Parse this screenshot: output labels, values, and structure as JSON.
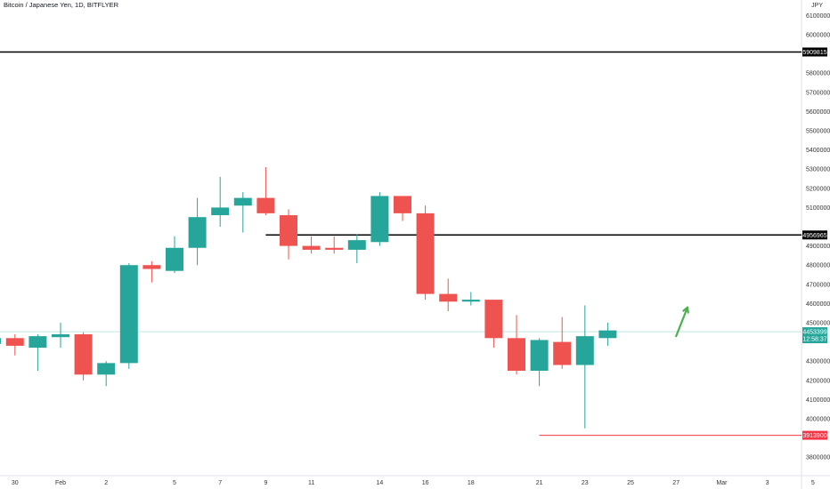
{
  "header": {
    "title": "Bitcoin / Japanese Yen, 1D, BITFLYER",
    "currency": "JPY"
  },
  "colors": {
    "up": "#26a69a",
    "down": "#ef5350",
    "level": "#000000",
    "support": "#f23645",
    "arrow": "#4caf50",
    "current": "#26a69a"
  },
  "chart_data": {
    "type": "candlestick",
    "title": "Bitcoin / Japanese Yen, 1D, BITFLYER",
    "ylim": [
      3750000,
      6170000
    ],
    "y_ticks": [
      3800000,
      4000000,
      4100000,
      4200000,
      4300000,
      4500000,
      4600000,
      4700000,
      4800000,
      4900000,
      5100000,
      5200000,
      5300000,
      5400000,
      5500000,
      5600000,
      5700000,
      5800000,
      6000000,
      6100000
    ],
    "x_ticks": [
      {
        "label": "30",
        "day": -2
      },
      {
        "label": "Feb",
        "day": 0
      },
      {
        "label": "2",
        "day": 2
      },
      {
        "label": "5",
        "day": 5
      },
      {
        "label": "7",
        "day": 7
      },
      {
        "label": "9",
        "day": 9
      },
      {
        "label": "11",
        "day": 11
      },
      {
        "label": "14",
        "day": 14
      },
      {
        "label": "16",
        "day": 16
      },
      {
        "label": "18",
        "day": 18
      },
      {
        "label": "21",
        "day": 21
      },
      {
        "label": "23",
        "day": 23
      },
      {
        "label": "25",
        "day": 25
      },
      {
        "label": "27",
        "day": 27
      },
      {
        "label": "Mar",
        "day": 29
      },
      {
        "label": "3",
        "day": 31
      },
      {
        "label": "5",
        "day": 33
      }
    ],
    "candles": [
      {
        "day": -3,
        "o": 4390000,
        "h": 4440000,
        "l": 4350000,
        "c": 4420000
      },
      {
        "day": -2,
        "o": 4420000,
        "h": 4440000,
        "l": 4330000,
        "c": 4380000
      },
      {
        "day": -1,
        "o": 4370000,
        "h": 4440000,
        "l": 4250000,
        "c": 4430000
      },
      {
        "day": 0,
        "o": 4425000,
        "h": 4500000,
        "l": 4370000,
        "c": 4440000
      },
      {
        "day": 1,
        "o": 4440000,
        "h": 4450000,
        "l": 4200000,
        "c": 4230000
      },
      {
        "day": 2,
        "o": 4230000,
        "h": 4300000,
        "l": 4170000,
        "c": 4290000
      },
      {
        "day": 3,
        "o": 4290000,
        "h": 4810000,
        "l": 4260000,
        "c": 4800000
      },
      {
        "day": 4,
        "o": 4800000,
        "h": 4820000,
        "l": 4710000,
        "c": 4780000
      },
      {
        "day": 5,
        "o": 4770000,
        "h": 4950000,
        "l": 4760000,
        "c": 4890000
      },
      {
        "day": 6,
        "o": 4890000,
        "h": 5150000,
        "l": 4800000,
        "c": 5050000
      },
      {
        "day": 7,
        "o": 5060000,
        "h": 5260000,
        "l": 5000000,
        "c": 5100000
      },
      {
        "day": 8,
        "o": 5110000,
        "h": 5180000,
        "l": 4970000,
        "c": 5150000
      },
      {
        "day": 9,
        "o": 5150000,
        "h": 5310000,
        "l": 5060000,
        "c": 5070000
      },
      {
        "day": 10,
        "o": 5060000,
        "h": 5090000,
        "l": 4830000,
        "c": 4900000
      },
      {
        "day": 11,
        "o": 4900000,
        "h": 4950000,
        "l": 4860000,
        "c": 4880000
      },
      {
        "day": 12,
        "o": 4890000,
        "h": 4950000,
        "l": 4860000,
        "c": 4880000
      },
      {
        "day": 13,
        "o": 4880000,
        "h": 4960000,
        "l": 4810000,
        "c": 4930000
      },
      {
        "day": 14,
        "o": 4920000,
        "h": 5180000,
        "l": 4900000,
        "c": 5160000
      },
      {
        "day": 15,
        "o": 5160000,
        "h": 5160000,
        "l": 5030000,
        "c": 5070000
      },
      {
        "day": 16,
        "o": 5070000,
        "h": 5110000,
        "l": 4620000,
        "c": 4650000
      },
      {
        "day": 17,
        "o": 4650000,
        "h": 4730000,
        "l": 4560000,
        "c": 4610000
      },
      {
        "day": 18,
        "o": 4610000,
        "h": 4660000,
        "l": 4590000,
        "c": 4620000
      },
      {
        "day": 19,
        "o": 4620000,
        "h": 4620000,
        "l": 4370000,
        "c": 4420000
      },
      {
        "day": 20,
        "o": 4420000,
        "h": 4540000,
        "l": 4230000,
        "c": 4250000
      },
      {
        "day": 21,
        "o": 4250000,
        "h": 4420000,
        "l": 4170000,
        "c": 4410000
      },
      {
        "day": 22,
        "o": 4400000,
        "h": 4530000,
        "l": 4260000,
        "c": 4280000
      },
      {
        "day": 23,
        "o": 4280000,
        "h": 4590000,
        "l": 3950000,
        "c": 4430000
      },
      {
        "day": 24,
        "o": 4420000,
        "h": 4500000,
        "l": 4380000,
        "c": 4460000
      }
    ],
    "levels": [
      {
        "label": "5909815",
        "value": 5909815,
        "from_day": null
      },
      {
        "label": "4956965",
        "value": 4956965,
        "from_day": 9
      },
      {
        "label": "3913900",
        "value": 3913900,
        "from_day": 21
      }
    ],
    "last_price": {
      "label": "4453399",
      "value": 4453399,
      "countdown": "12:58:37"
    },
    "arrow": {
      "from_day": 27,
      "from_value": 4430000,
      "to_day": 27.5,
      "to_value": 4580000
    }
  }
}
